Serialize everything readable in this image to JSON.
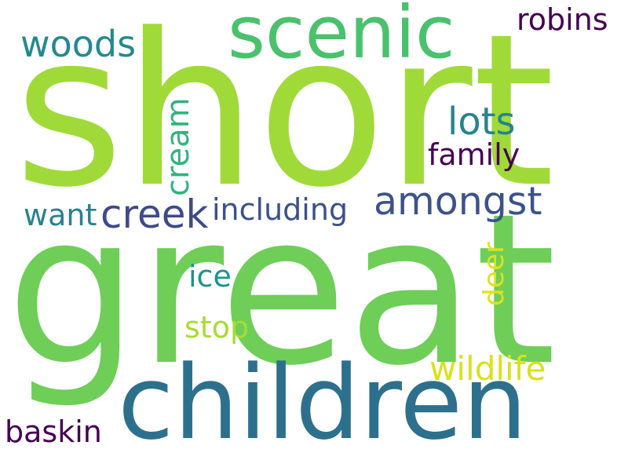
{
  "words": [
    {
      "text": "short",
      "color": "#a0da39"
    },
    {
      "text": "great",
      "color": "#6ece58"
    },
    {
      "text": "children",
      "color": "#2d708e"
    },
    {
      "text": "scenic",
      "color": "#4ac16d"
    },
    {
      "text": "woods",
      "color": "#23898e"
    },
    {
      "text": "robins",
      "color": "#440154"
    },
    {
      "text": "lots",
      "color": "#25848e"
    },
    {
      "text": "family",
      "color": "#440154"
    },
    {
      "text": "cream",
      "color": "#2fb47c"
    },
    {
      "text": "amongst",
      "color": "#3b528b"
    },
    {
      "text": "creek",
      "color": "#3e4a89"
    },
    {
      "text": "including",
      "color": "#3b518b"
    },
    {
      "text": "want",
      "color": "#26828e"
    },
    {
      "text": "ice",
      "color": "#21918c"
    },
    {
      "text": "deer",
      "color": "#dfe318"
    },
    {
      "text": "stop",
      "color": "#a8db34"
    },
    {
      "text": "wildlife",
      "color": "#d8e219"
    },
    {
      "text": "baskin",
      "color": "#440154"
    }
  ]
}
